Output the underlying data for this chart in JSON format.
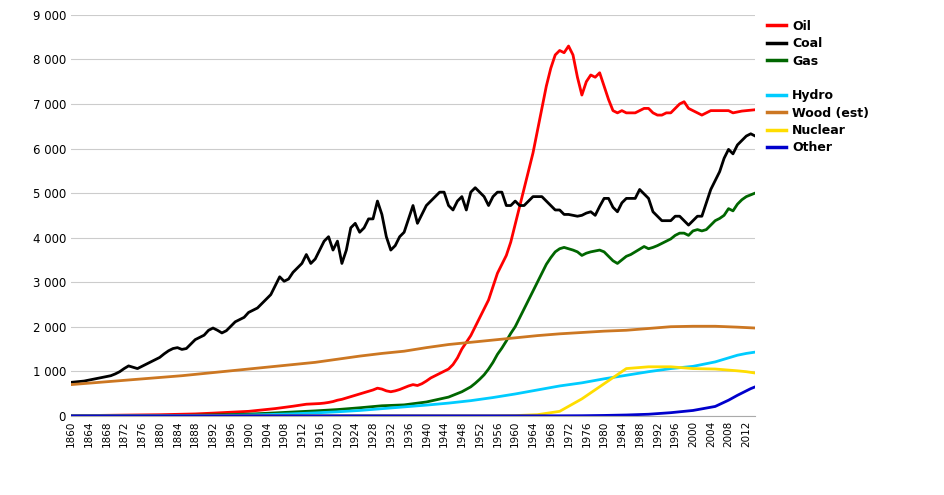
{
  "title": "",
  "xlabel": "",
  "ylabel": "",
  "ylim": [
    0,
    9000
  ],
  "xlim": [
    1860,
    2014
  ],
  "yticks": [
    0,
    1000,
    2000,
    3000,
    4000,
    5000,
    6000,
    7000,
    8000,
    9000
  ],
  "xticks": [
    1860,
    1864,
    1868,
    1872,
    1876,
    1880,
    1884,
    1888,
    1892,
    1896,
    1900,
    1904,
    1908,
    1912,
    1916,
    1920,
    1924,
    1928,
    1932,
    1936,
    1940,
    1944,
    1948,
    1952,
    1956,
    1960,
    1964,
    1968,
    1972,
    1976,
    1980,
    1984,
    1988,
    1992,
    1996,
    2000,
    2004,
    2008,
    2012
  ],
  "background_color": "#ffffff",
  "grid_color": "#cccccc",
  "series": {
    "Oil": {
      "color": "#ff0000",
      "linewidth": 2.0,
      "data": {
        "1860": 2,
        "1861": 3,
        "1862": 4,
        "1863": 5,
        "1864": 6,
        "1865": 7,
        "1866": 8,
        "1867": 9,
        "1868": 10,
        "1869": 11,
        "1870": 12,
        "1871": 13,
        "1872": 14,
        "1873": 15,
        "1874": 17,
        "1875": 18,
        "1876": 19,
        "1877": 20,
        "1878": 21,
        "1879": 22,
        "1880": 24,
        "1881": 26,
        "1882": 28,
        "1883": 30,
        "1884": 32,
        "1885": 34,
        "1886": 36,
        "1887": 38,
        "1888": 42,
        "1889": 46,
        "1890": 50,
        "1891": 55,
        "1892": 60,
        "1893": 65,
        "1894": 70,
        "1895": 75,
        "1896": 80,
        "1897": 85,
        "1898": 90,
        "1899": 95,
        "1900": 100,
        "1901": 110,
        "1902": 120,
        "1903": 130,
        "1904": 140,
        "1905": 150,
        "1906": 162,
        "1907": 175,
        "1908": 188,
        "1909": 200,
        "1910": 215,
        "1911": 230,
        "1912": 245,
        "1913": 260,
        "1914": 265,
        "1915": 270,
        "1916": 275,
        "1917": 285,
        "1918": 300,
        "1919": 320,
        "1920": 350,
        "1921": 370,
        "1922": 400,
        "1923": 430,
        "1924": 460,
        "1925": 490,
        "1926": 520,
        "1927": 550,
        "1928": 580,
        "1929": 620,
        "1930": 600,
        "1931": 560,
        "1932": 540,
        "1933": 560,
        "1934": 590,
        "1935": 630,
        "1936": 670,
        "1937": 700,
        "1938": 680,
        "1939": 720,
        "1940": 780,
        "1941": 850,
        "1942": 900,
        "1943": 950,
        "1944": 1000,
        "1945": 1050,
        "1946": 1150,
        "1947": 1300,
        "1948": 1500,
        "1949": 1650,
        "1950": 1800,
        "1951": 2000,
        "1952": 2200,
        "1953": 2400,
        "1954": 2600,
        "1955": 2900,
        "1956": 3200,
        "1957": 3400,
        "1958": 3600,
        "1959": 3900,
        "1960": 4300,
        "1961": 4700,
        "1962": 5100,
        "1963": 5500,
        "1964": 5900,
        "1965": 6400,
        "1966": 6900,
        "1967": 7400,
        "1968": 7800,
        "1969": 8100,
        "1970": 8200,
        "1971": 8150,
        "1972": 8300,
        "1973": 8100,
        "1974": 7600,
        "1975": 7200,
        "1976": 7500,
        "1977": 7650,
        "1978": 7600,
        "1979": 7700,
        "1980": 7400,
        "1981": 7100,
        "1982": 6850,
        "1983": 6800,
        "1984": 6850,
        "1985": 6800,
        "1986": 6800,
        "1987": 6800,
        "1988": 6850,
        "1989": 6900,
        "1990": 6900,
        "1991": 6800,
        "1992": 6750,
        "1993": 6750,
        "1994": 6800,
        "1995": 6800,
        "1996": 6900,
        "1997": 7000,
        "1998": 7050,
        "1999": 6900,
        "2000": 6850,
        "2001": 6800,
        "2002": 6750,
        "2003": 6800,
        "2004": 6850,
        "2005": 6850,
        "2006": 6850,
        "2007": 6850,
        "2008": 6850,
        "2009": 6800,
        "2010": 6820,
        "2011": 6840,
        "2012": 6850,
        "2013": 6860,
        "2014": 6870
      }
    },
    "Coal": {
      "color": "#000000",
      "linewidth": 2.0,
      "data": {
        "1860": 750,
        "1861": 760,
        "1862": 770,
        "1863": 780,
        "1864": 800,
        "1865": 820,
        "1866": 840,
        "1867": 860,
        "1868": 880,
        "1869": 900,
        "1870": 940,
        "1871": 990,
        "1872": 1060,
        "1873": 1120,
        "1874": 1090,
        "1875": 1060,
        "1876": 1110,
        "1877": 1160,
        "1878": 1210,
        "1879": 1260,
        "1880": 1310,
        "1881": 1390,
        "1882": 1460,
        "1883": 1510,
        "1884": 1530,
        "1885": 1490,
        "1886": 1510,
        "1887": 1610,
        "1888": 1710,
        "1889": 1760,
        "1890": 1810,
        "1891": 1920,
        "1892": 1970,
        "1893": 1920,
        "1894": 1860,
        "1895": 1910,
        "1896": 2010,
        "1897": 2110,
        "1898": 2160,
        "1899": 2210,
        "1900": 2320,
        "1901": 2370,
        "1902": 2420,
        "1903": 2520,
        "1904": 2620,
        "1905": 2720,
        "1906": 2920,
        "1907": 3120,
        "1908": 3020,
        "1909": 3070,
        "1910": 3220,
        "1911": 3320,
        "1912": 3420,
        "1913": 3620,
        "1914": 3420,
        "1915": 3520,
        "1916": 3720,
        "1917": 3920,
        "1918": 4020,
        "1919": 3720,
        "1920": 3920,
        "1921": 3420,
        "1922": 3720,
        "1923": 4220,
        "1924": 4320,
        "1925": 4120,
        "1926": 4220,
        "1927": 4420,
        "1928": 4420,
        "1929": 4820,
        "1930": 4520,
        "1931": 4020,
        "1932": 3720,
        "1933": 3820,
        "1934": 4020,
        "1935": 4120,
        "1936": 4420,
        "1937": 4720,
        "1938": 4320,
        "1939": 4520,
        "1940": 4720,
        "1941": 4820,
        "1942": 4920,
        "1943": 5020,
        "1944": 5020,
        "1945": 4720,
        "1946": 4620,
        "1947": 4820,
        "1948": 4920,
        "1949": 4620,
        "1950": 5020,
        "1951": 5120,
        "1952": 5020,
        "1953": 4920,
        "1954": 4720,
        "1955": 4920,
        "1956": 5020,
        "1957": 5020,
        "1958": 4720,
        "1959": 4720,
        "1960": 4820,
        "1961": 4720,
        "1962": 4720,
        "1963": 4820,
        "1964": 4920,
        "1965": 4920,
        "1966": 4920,
        "1967": 4820,
        "1968": 4720,
        "1969": 4620,
        "1970": 4620,
        "1971": 4520,
        "1972": 4520,
        "1973": 4500,
        "1974": 4480,
        "1975": 4500,
        "1976": 4550,
        "1977": 4580,
        "1978": 4500,
        "1979": 4700,
        "1980": 4880,
        "1981": 4880,
        "1982": 4680,
        "1983": 4580,
        "1984": 4780,
        "1985": 4880,
        "1986": 4880,
        "1987": 4880,
        "1988": 5080,
        "1989": 4980,
        "1990": 4880,
        "1991": 4580,
        "1992": 4480,
        "1993": 4380,
        "1994": 4380,
        "1995": 4380,
        "1996": 4480,
        "1997": 4480,
        "1998": 4380,
        "1999": 4280,
        "2000": 4380,
        "2001": 4480,
        "2002": 4480,
        "2003": 4780,
        "2004": 5080,
        "2005": 5280,
        "2006": 5480,
        "2007": 5780,
        "2008": 5980,
        "2009": 5880,
        "2010": 6080,
        "2011": 6180,
        "2012": 6280,
        "2013": 6330,
        "2014": 6280
      }
    },
    "Gas": {
      "color": "#006600",
      "linewidth": 2.0,
      "data": {
        "1860": 0,
        "1865": 0,
        "1870": 0,
        "1875": 0,
        "1880": 2,
        "1885": 7,
        "1890": 16,
        "1895": 26,
        "1900": 38,
        "1905": 60,
        "1910": 85,
        "1913": 100,
        "1915": 110,
        "1920": 140,
        "1925": 180,
        "1930": 225,
        "1935": 245,
        "1940": 310,
        "1945": 420,
        "1948": 540,
        "1950": 650,
        "1951": 730,
        "1952": 820,
        "1953": 920,
        "1954": 1050,
        "1955": 1200,
        "1956": 1380,
        "1957": 1520,
        "1958": 1680,
        "1959": 1850,
        "1960": 2000,
        "1961": 2200,
        "1962": 2400,
        "1963": 2600,
        "1964": 2800,
        "1965": 3000,
        "1966": 3200,
        "1967": 3400,
        "1968": 3550,
        "1969": 3680,
        "1970": 3750,
        "1971": 3780,
        "1972": 3750,
        "1973": 3720,
        "1974": 3680,
        "1975": 3600,
        "1976": 3650,
        "1977": 3680,
        "1978": 3700,
        "1979": 3720,
        "1980": 3680,
        "1981": 3580,
        "1982": 3480,
        "1983": 3420,
        "1984": 3500,
        "1985": 3580,
        "1986": 3620,
        "1987": 3680,
        "1988": 3740,
        "1989": 3800,
        "1990": 3750,
        "1991": 3780,
        "1992": 3820,
        "1993": 3870,
        "1994": 3920,
        "1995": 3970,
        "1996": 4050,
        "1997": 4100,
        "1998": 4100,
        "1999": 4050,
        "2000": 4150,
        "2001": 4180,
        "2002": 4150,
        "2003": 4180,
        "2004": 4280,
        "2005": 4380,
        "2006": 4430,
        "2007": 4500,
        "2008": 4650,
        "2009": 4600,
        "2010": 4750,
        "2011": 4850,
        "2012": 4920,
        "2013": 4960,
        "2014": 5000
      }
    },
    "Hydro": {
      "color": "#00ccff",
      "linewidth": 2.0,
      "data": {
        "1860": 0,
        "1865": 0,
        "1870": 0,
        "1875": 0,
        "1880": 0,
        "1885": 2,
        "1890": 5,
        "1895": 10,
        "1900": 18,
        "1905": 30,
        "1910": 45,
        "1915": 65,
        "1920": 90,
        "1925": 120,
        "1930": 160,
        "1935": 200,
        "1940": 240,
        "1945": 285,
        "1950": 340,
        "1955": 410,
        "1960": 490,
        "1965": 580,
        "1970": 670,
        "1975": 740,
        "1980": 830,
        "1985": 910,
        "1990": 990,
        "1995": 1060,
        "2000": 1110,
        "2005": 1210,
        "2010": 1360,
        "2012": 1400,
        "2014": 1430
      }
    },
    "Wood": {
      "color": "#cc7722",
      "linewidth": 2.0,
      "data": {
        "1860": 700,
        "1865": 740,
        "1870": 780,
        "1875": 820,
        "1880": 860,
        "1885": 900,
        "1890": 950,
        "1895": 1000,
        "1900": 1050,
        "1905": 1100,
        "1910": 1150,
        "1915": 1200,
        "1920": 1270,
        "1925": 1340,
        "1930": 1400,
        "1935": 1450,
        "1940": 1530,
        "1945": 1600,
        "1950": 1650,
        "1955": 1700,
        "1960": 1750,
        "1965": 1800,
        "1970": 1840,
        "1975": 1870,
        "1980": 1900,
        "1985": 1920,
        "1990": 1960,
        "1995": 2000,
        "2000": 2010,
        "2005": 2010,
        "2010": 1990,
        "2012": 1980,
        "2014": 1970
      }
    },
    "Nuclear": {
      "color": "#ffdd00",
      "linewidth": 2.0,
      "data": {
        "1860": 0,
        "1955": 0,
        "1960": 5,
        "1965": 25,
        "1970": 100,
        "1975": 380,
        "1980": 720,
        "1985": 1060,
        "1990": 1100,
        "1995": 1100,
        "2000": 1060,
        "2005": 1050,
        "2010": 1010,
        "2012": 990,
        "2014": 960
      }
    },
    "Other": {
      "color": "#0000cc",
      "linewidth": 2.0,
      "data": {
        "1860": 0,
        "1950": 0,
        "1970": 0,
        "1975": 2,
        "1980": 8,
        "1985": 18,
        "1990": 35,
        "1995": 70,
        "2000": 120,
        "2005": 210,
        "2008": 350,
        "2010": 460,
        "2012": 560,
        "2013": 610,
        "2014": 650
      }
    }
  },
  "legend_order": [
    "Oil",
    "Coal",
    "Gas",
    "Hydro",
    "Wood",
    "Nuclear",
    "Other"
  ],
  "legend_labels": {
    "Oil": "Oil",
    "Coal": "Coal",
    "Gas": "Gas",
    "Hydro": "Hydro",
    "Wood": "Wood (est)",
    "Nuclear": "Nuclear",
    "Other": "Other"
  },
  "legend_colors": {
    "Oil": "#ff0000",
    "Coal": "#000000",
    "Gas": "#006600",
    "Hydro": "#00ccff",
    "Wood": "#cc7722",
    "Nuclear": "#ffdd00",
    "Other": "#0000cc"
  }
}
